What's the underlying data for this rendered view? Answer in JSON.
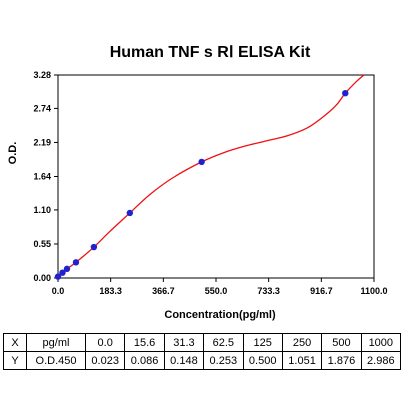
{
  "chart_data": {
    "type": "scatter",
    "title": "Human TNF s RⅠ ELISA Kit",
    "xlabel": "Concentration(pg/ml)",
    "ylabel": "O.D.",
    "xlim": [
      0,
      1100
    ],
    "ylim": [
      0,
      3.28
    ],
    "xticks": [
      "0.0",
      "183.3",
      "366.7",
      "550.0",
      "733.3",
      "916.7",
      "1100.0"
    ],
    "yticks": [
      "0.00",
      "0.55",
      "1.10",
      "1.64",
      "2.19",
      "2.74",
      "3.28"
    ],
    "grid": false,
    "legend": "none",
    "colors": {
      "curve": "#ee1111",
      "point": "#2222cc",
      "frame": "#000000"
    },
    "points": {
      "x": [
        0,
        15.6,
        31.3,
        62.5,
        125,
        250,
        500,
        1000
      ],
      "y": [
        0.023,
        0.086,
        0.148,
        0.253,
        0.5,
        1.051,
        1.876,
        2.986
      ]
    },
    "fit_curve": {
      "x": [
        0,
        15.6,
        31.3,
        62.5,
        125,
        180,
        250,
        320,
        400,
        500,
        580,
        650,
        720,
        800,
        870,
        930,
        970,
        1000,
        1040,
        1065
      ],
      "y": [
        0.023,
        0.086,
        0.148,
        0.253,
        0.5,
        0.75,
        1.051,
        1.35,
        1.62,
        1.876,
        2.03,
        2.13,
        2.21,
        2.3,
        2.43,
        2.63,
        2.8,
        2.986,
        3.18,
        3.28
      ]
    }
  },
  "table": {
    "rows": [
      {
        "label": "X",
        "unit": "pg/ml",
        "values": [
          "0.0",
          "15.6",
          "31.3",
          "62.5",
          "125",
          "250",
          "500",
          "1000"
        ]
      },
      {
        "label": "Y",
        "unit": "O.D.450",
        "values": [
          "0.023",
          "0.086",
          "0.148",
          "0.253",
          "0.500",
          "1.051",
          "1.876",
          "2.986"
        ]
      }
    ]
  }
}
